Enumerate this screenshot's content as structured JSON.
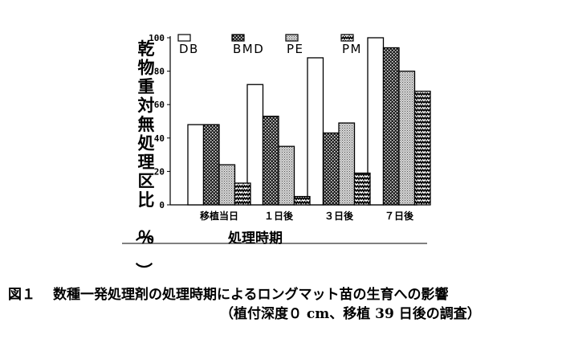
{
  "chart_data": {
    "type": "bar",
    "categories": [
      "移植当日",
      "１日後",
      "３日後",
      "７日後"
    ],
    "series": [
      {
        "name": "DB",
        "values": [
          48,
          72,
          88,
          100
        ]
      },
      {
        "name": "BMD",
        "values": [
          48,
          53,
          43,
          94
        ]
      },
      {
        "name": "PE",
        "values": [
          24,
          35,
          49,
          80
        ]
      },
      {
        "name": "PM",
        "values": [
          13,
          5,
          19,
          68
        ]
      }
    ],
    "ylabel": "乾物重対無処理区比（％）",
    "xlabel": "処理時期",
    "ylim": [
      0,
      100
    ],
    "yticks": [
      "0",
      "20",
      "40",
      "60",
      "80",
      "100"
    ],
    "legend_position": "top",
    "grid": false
  },
  "caption": {
    "figure_number": "図１",
    "title": "数種一発処理剤の処理時期によるロングマット苗の生育への影響",
    "subtitle": "（植付深度０ cm、移植 39 日後の調査）"
  }
}
